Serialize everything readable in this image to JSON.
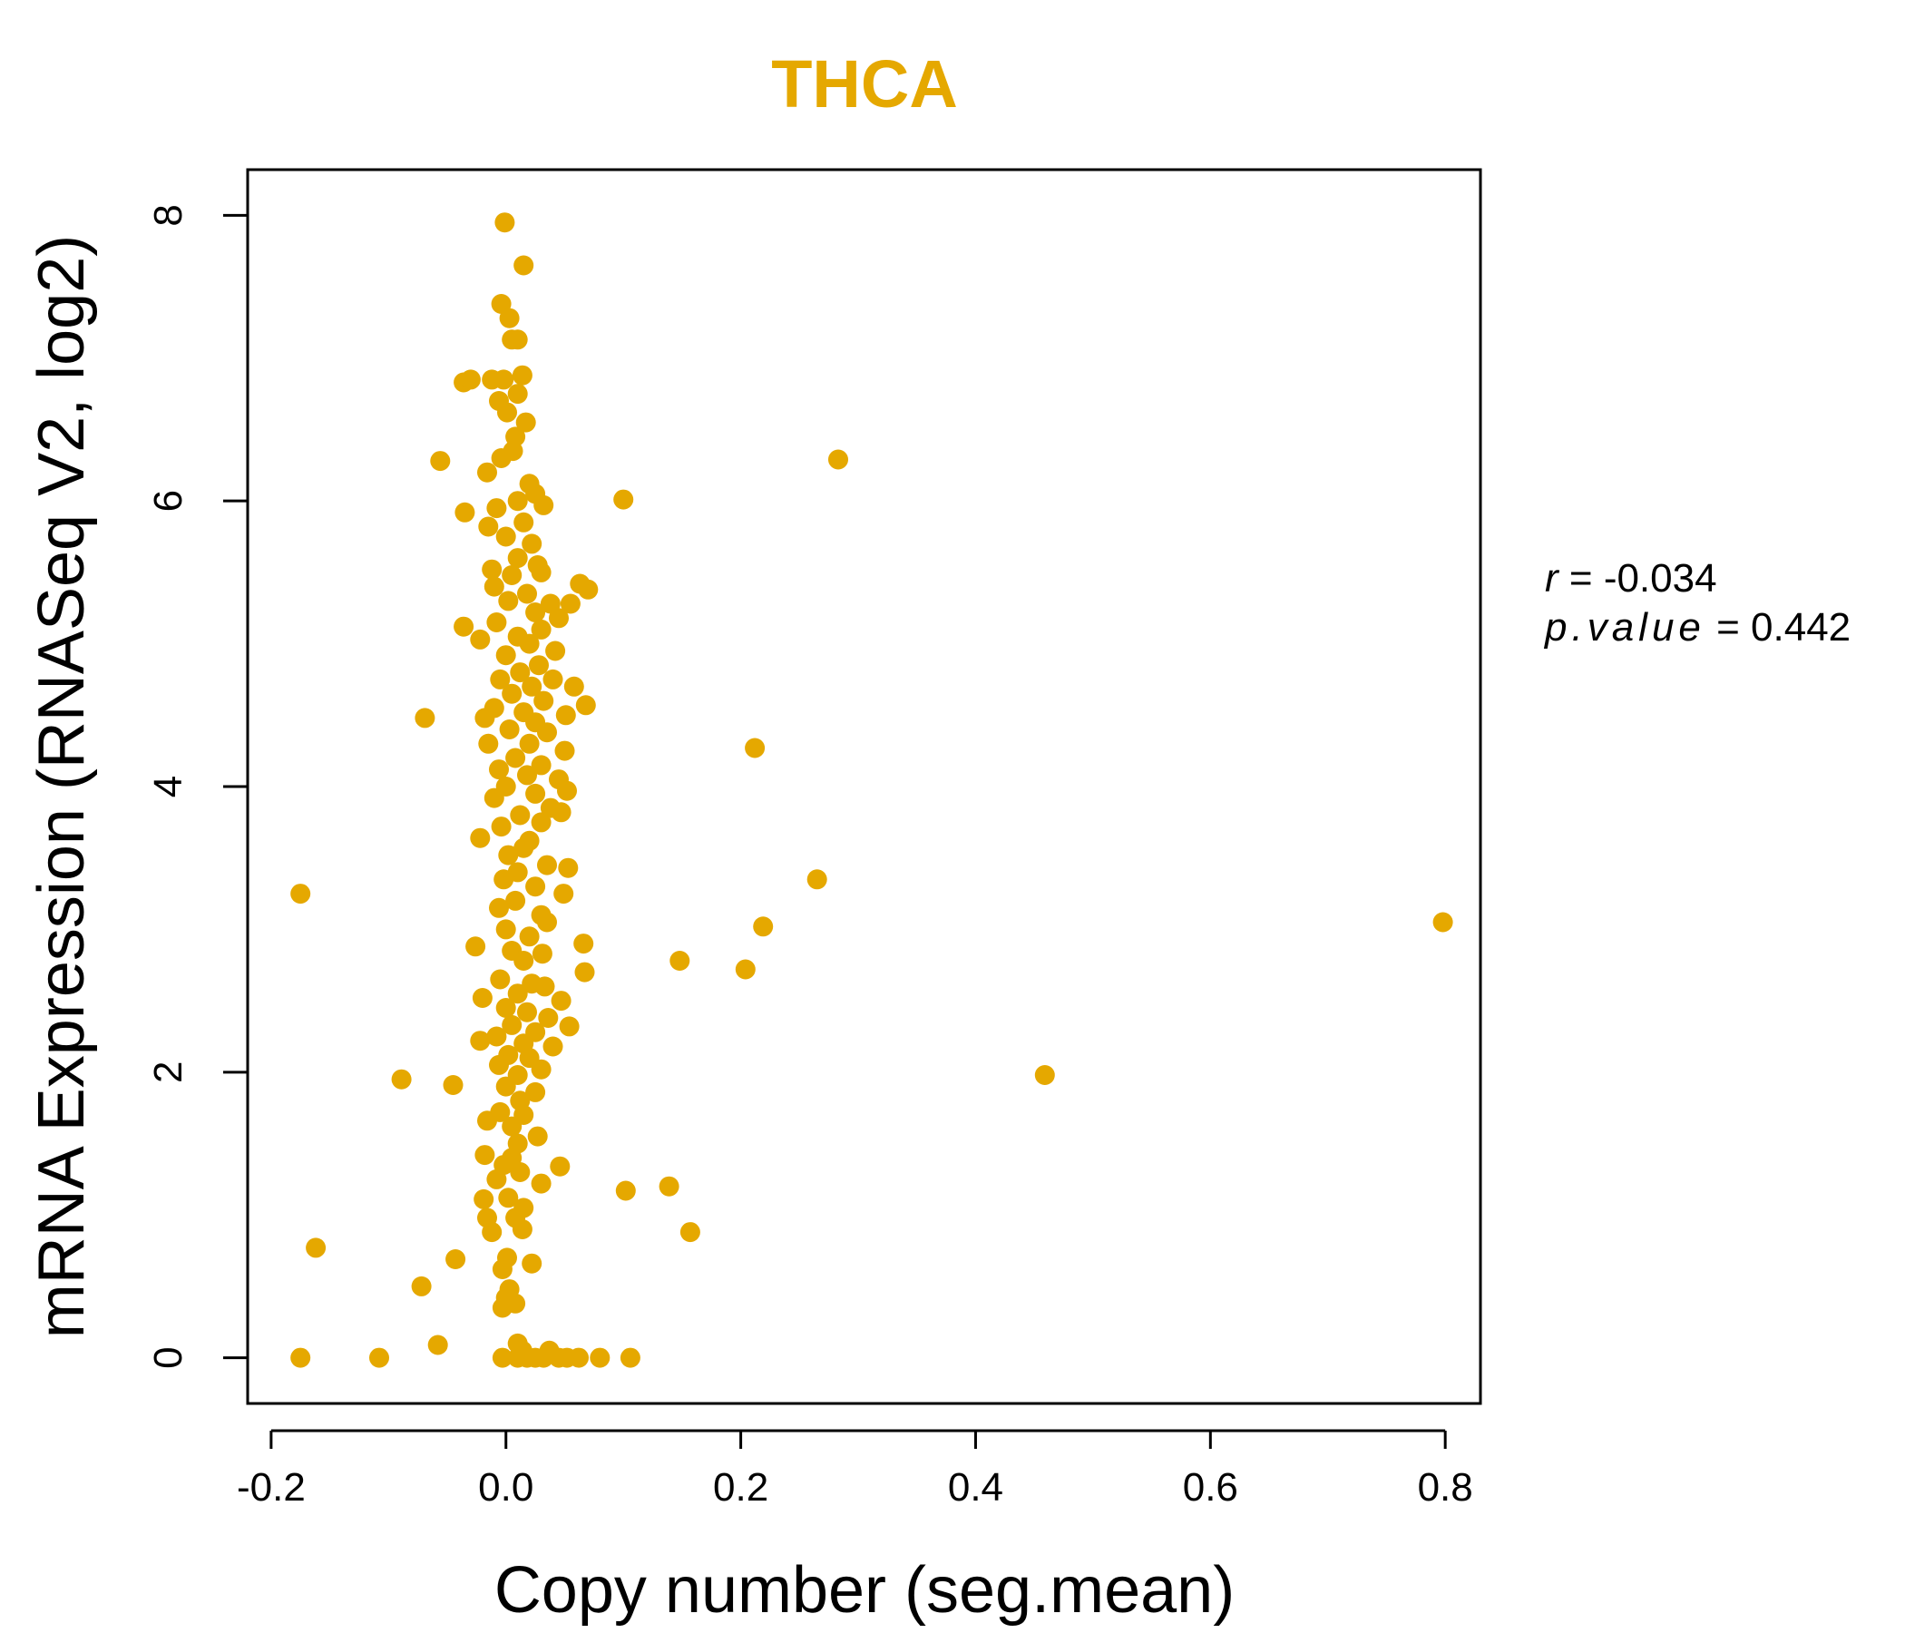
{
  "chart_data": {
    "type": "scatter",
    "title": "THCA",
    "xlabel": "Copy number (seg.mean)",
    "ylabel": "mRNA Expression (RNASeq V2, log2)",
    "xlim": [
      -0.22,
      0.83
    ],
    "ylim": [
      -0.32,
      8.32
    ],
    "x_ticks": [
      -0.2,
      0.0,
      0.2,
      0.4,
      0.6,
      0.8
    ],
    "x_tick_labels": [
      "-0.2",
      "0.0",
      "0.2",
      "0.4",
      "0.6",
      "0.8"
    ],
    "y_ticks": [
      0,
      2,
      4,
      6,
      8
    ],
    "y_tick_labels": [
      "0",
      "2",
      "4",
      "6",
      "8"
    ],
    "colors": {
      "points": "#E5A800",
      "title": "#E5A800",
      "axes": "#000000"
    },
    "stats": {
      "r_label": "r",
      "r_value": "-0.034",
      "p_label": "p.value",
      "p_value": "0.442"
    },
    "points": [
      [
        -0.001,
        7.95
      ],
      [
        0.015,
        7.65
      ],
      [
        -0.004,
        7.38
      ],
      [
        0.003,
        7.28
      ],
      [
        0.005,
        7.13
      ],
      [
        0.01,
        7.13
      ],
      [
        -0.036,
        6.83
      ],
      [
        -0.03,
        6.85
      ],
      [
        -0.012,
        6.85
      ],
      [
        -0.002,
        6.85
      ],
      [
        0.014,
        6.88
      ],
      [
        -0.006,
        6.7
      ],
      [
        0.01,
        6.75
      ],
      [
        0.001,
        6.62
      ],
      [
        0.008,
        6.45
      ],
      [
        0.017,
        6.55
      ],
      [
        -0.056,
        6.28
      ],
      [
        -0.016,
        6.2
      ],
      [
        -0.004,
        6.3
      ],
      [
        0.006,
        6.35
      ],
      [
        0.283,
        6.29
      ],
      [
        0.02,
        6.12
      ],
      [
        0.025,
        6.05
      ],
      [
        0.01,
        6.0
      ],
      [
        0.1,
        6.01
      ],
      [
        -0.035,
        5.92
      ],
      [
        -0.008,
        5.95
      ],
      [
        0.032,
        5.97
      ],
      [
        -0.015,
        5.82
      ],
      [
        0.015,
        5.85
      ],
      [
        0.0,
        5.75
      ],
      [
        0.022,
        5.7
      ],
      [
        0.01,
        5.6
      ],
      [
        0.027,
        5.55
      ],
      [
        -0.012,
        5.52
      ],
      [
        0.005,
        5.48
      ],
      [
        0.03,
        5.5
      ],
      [
        0.063,
        5.42
      ],
      [
        0.07,
        5.38
      ],
      [
        -0.01,
        5.4
      ],
      [
        0.018,
        5.35
      ],
      [
        0.055,
        5.28
      ],
      [
        0.038,
        5.28
      ],
      [
        0.002,
        5.3
      ],
      [
        0.025,
        5.22
      ],
      [
        0.045,
        5.18
      ],
      [
        -0.036,
        5.12
      ],
      [
        -0.008,
        5.15
      ],
      [
        0.03,
        5.1
      ],
      [
        -0.022,
        5.03
      ],
      [
        0.01,
        5.05
      ],
      [
        0.02,
        5.0
      ],
      [
        0.042,
        4.95
      ],
      [
        0.0,
        4.92
      ],
      [
        0.028,
        4.85
      ],
      [
        0.012,
        4.8
      ],
      [
        0.04,
        4.75
      ],
      [
        -0.005,
        4.75
      ],
      [
        0.022,
        4.7
      ],
      [
        0.058,
        4.7
      ],
      [
        0.005,
        4.65
      ],
      [
        0.032,
        4.6
      ],
      [
        0.068,
        4.57
      ],
      [
        -0.01,
        4.55
      ],
      [
        0.015,
        4.52
      ],
      [
        -0.069,
        4.48
      ],
      [
        0.051,
        4.5
      ],
      [
        -0.018,
        4.48
      ],
      [
        0.025,
        4.45
      ],
      [
        0.003,
        4.4
      ],
      [
        0.035,
        4.38
      ],
      [
        -0.015,
        4.3
      ],
      [
        0.02,
        4.3
      ],
      [
        0.05,
        4.25
      ],
      [
        0.212,
        4.27
      ],
      [
        0.008,
        4.2
      ],
      [
        0.03,
        4.15
      ],
      [
        -0.006,
        4.12
      ],
      [
        0.018,
        4.08
      ],
      [
        0.045,
        4.05
      ],
      [
        0.0,
        4.0
      ],
      [
        0.052,
        3.97
      ],
      [
        0.025,
        3.95
      ],
      [
        -0.01,
        3.92
      ],
      [
        0.038,
        3.85
      ],
      [
        0.047,
        3.82
      ],
      [
        0.012,
        3.8
      ],
      [
        0.03,
        3.75
      ],
      [
        -0.004,
        3.72
      ],
      [
        -0.022,
        3.64
      ],
      [
        0.02,
        3.62
      ],
      [
        0.015,
        3.57
      ],
      [
        0.002,
        3.52
      ],
      [
        0.035,
        3.45
      ],
      [
        0.053,
        3.43
      ],
      [
        0.01,
        3.4
      ],
      [
        -0.002,
        3.35
      ],
      [
        0.265,
        3.35
      ],
      [
        0.025,
        3.3
      ],
      [
        -0.175,
        3.25
      ],
      [
        0.049,
        3.25
      ],
      [
        0.008,
        3.2
      ],
      [
        -0.006,
        3.15
      ],
      [
        0.03,
        3.1
      ],
      [
        0.798,
        3.05
      ],
      [
        0.035,
        3.05
      ],
      [
        0.219,
        3.02
      ],
      [
        0.0,
        3.0
      ],
      [
        0.02,
        2.95
      ],
      [
        0.066,
        2.9
      ],
      [
        -0.026,
        2.88
      ],
      [
        0.005,
        2.85
      ],
      [
        0.031,
        2.83
      ],
      [
        0.148,
        2.78
      ],
      [
        0.015,
        2.78
      ],
      [
        0.204,
        2.72
      ],
      [
        0.067,
        2.7
      ],
      [
        -0.005,
        2.65
      ],
      [
        0.022,
        2.62
      ],
      [
        0.033,
        2.6
      ],
      [
        0.01,
        2.55
      ],
      [
        -0.02,
        2.52
      ],
      [
        0.047,
        2.5
      ],
      [
        0.0,
        2.45
      ],
      [
        0.018,
        2.42
      ],
      [
        0.036,
        2.38
      ],
      [
        0.005,
        2.33
      ],
      [
        0.054,
        2.32
      ],
      [
        0.025,
        2.28
      ],
      [
        -0.008,
        2.25
      ],
      [
        -0.022,
        2.22
      ],
      [
        0.015,
        2.2
      ],
      [
        0.04,
        2.18
      ],
      [
        0.002,
        2.12
      ],
      [
        0.02,
        2.1
      ],
      [
        -0.006,
        2.05
      ],
      [
        0.03,
        2.02
      ],
      [
        0.01,
        1.98
      ],
      [
        0.459,
        1.98
      ],
      [
        -0.089,
        1.95
      ],
      [
        -0.045,
        1.91
      ],
      [
        0.0,
        1.9
      ],
      [
        0.025,
        1.86
      ],
      [
        0.012,
        1.8
      ],
      [
        -0.005,
        1.72
      ],
      [
        0.015,
        1.7
      ],
      [
        -0.016,
        1.66
      ],
      [
        0.005,
        1.62
      ],
      [
        0.027,
        1.55
      ],
      [
        0.01,
        1.5
      ],
      [
        -0.018,
        1.42
      ],
      [
        0.005,
        1.4
      ],
      [
        -0.002,
        1.35
      ],
      [
        0.046,
        1.34
      ],
      [
        0.012,
        1.3
      ],
      [
        -0.008,
        1.25
      ],
      [
        0.03,
        1.22
      ],
      [
        0.139,
        1.2
      ],
      [
        0.102,
        1.17
      ],
      [
        0.002,
        1.12
      ],
      [
        -0.019,
        1.11
      ],
      [
        0.015,
        1.05
      ],
      [
        0.008,
        0.98
      ],
      [
        -0.016,
        0.98
      ],
      [
        0.157,
        0.88
      ],
      [
        -0.012,
        0.88
      ],
      [
        0.014,
        0.9
      ],
      [
        -0.162,
        0.77
      ],
      [
        0.001,
        0.7
      ],
      [
        -0.043,
        0.69
      ],
      [
        0.022,
        0.66
      ],
      [
        -0.003,
        0.62
      ],
      [
        -0.072,
        0.5
      ],
      [
        0.003,
        0.48
      ],
      [
        0.0,
        0.42
      ],
      [
        0.008,
        0.38
      ],
      [
        -0.003,
        0.35
      ],
      [
        -0.058,
        0.09
      ],
      [
        0.01,
        0.1
      ],
      [
        0.014,
        0.05
      ],
      [
        0.037,
        0.05
      ],
      [
        -0.175,
        0.0
      ],
      [
        -0.108,
        0.0
      ],
      [
        -0.003,
        0.0
      ],
      [
        0.01,
        0.0
      ],
      [
        0.018,
        0.0
      ],
      [
        0.025,
        0.0
      ],
      [
        0.032,
        0.0
      ],
      [
        0.045,
        0.0
      ],
      [
        0.052,
        0.0
      ],
      [
        0.062,
        0.0
      ],
      [
        0.08,
        0.0
      ],
      [
        0.106,
        0.0
      ]
    ]
  }
}
